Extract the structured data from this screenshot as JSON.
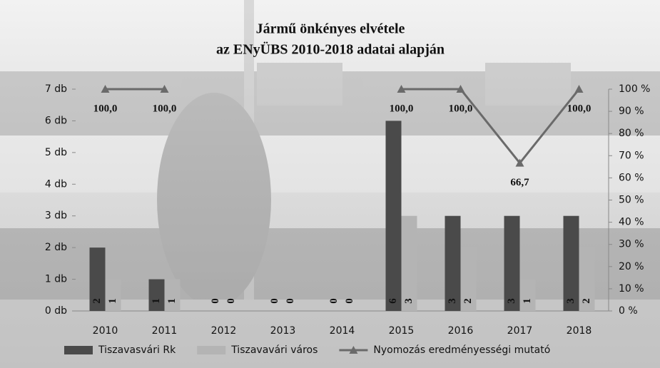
{
  "chart_data": {
    "type": "bar",
    "title": "Jármű önkényes elvétele",
    "subtitle": "az ENyÜBS 2010-2018 adatai alapján",
    "categories": [
      "2010",
      "2011",
      "2012",
      "2013",
      "2014",
      "2015",
      "2016",
      "2017",
      "2018"
    ],
    "series": [
      {
        "name": "Tiszavasvári Rk",
        "type": "bar",
        "color": "#4a4a4a",
        "label_color": "#ffffff",
        "values": [
          2,
          1,
          0,
          0,
          0,
          6,
          3,
          3,
          3
        ]
      },
      {
        "name": "Tiszavavári város",
        "type": "bar",
        "color": "#b4b4b4",
        "label_color": "#1a1a1a",
        "values": [
          1,
          1,
          0,
          0,
          0,
          3,
          2,
          1,
          2
        ]
      },
      {
        "name": "Nyomozás eredményességi mutató",
        "type": "line",
        "axis": "y2",
        "color": "#6a6a6a",
        "values": [
          100,
          100,
          null,
          null,
          null,
          100,
          100,
          66.7,
          100
        ],
        "value_labels": [
          "100,0",
          "100,0",
          null,
          null,
          null,
          "100,0",
          "100,0",
          "66,7",
          "100,0"
        ]
      }
    ],
    "ylim": [
      0,
      7
    ],
    "yticks": [
      {
        "value": 0,
        "label": "0 db"
      },
      {
        "value": 1,
        "label": "1 db"
      },
      {
        "value": 2,
        "label": "2 db"
      },
      {
        "value": 3,
        "label": "3 db"
      },
      {
        "value": 4,
        "label": "4 db"
      },
      {
        "value": 5,
        "label": "5 db"
      },
      {
        "value": 6,
        "label": "6 db"
      },
      {
        "value": 7,
        "label": "7 db"
      }
    ],
    "y2lim": [
      0,
      100
    ],
    "y2ticks": [
      {
        "value": 0,
        "label": "0 %"
      },
      {
        "value": 10,
        "label": "10 %"
      },
      {
        "value": 20,
        "label": "20 %"
      },
      {
        "value": 30,
        "label": "30 %"
      },
      {
        "value": 40,
        "label": "40 %"
      },
      {
        "value": 50,
        "label": "50 %"
      },
      {
        "value": 60,
        "label": "60 %"
      },
      {
        "value": 70,
        "label": "70 %"
      },
      {
        "value": 80,
        "label": "80 %"
      },
      {
        "value": 90,
        "label": "90 %"
      },
      {
        "value": 100,
        "label": "100 %"
      }
    ],
    "legend": "bottom"
  }
}
